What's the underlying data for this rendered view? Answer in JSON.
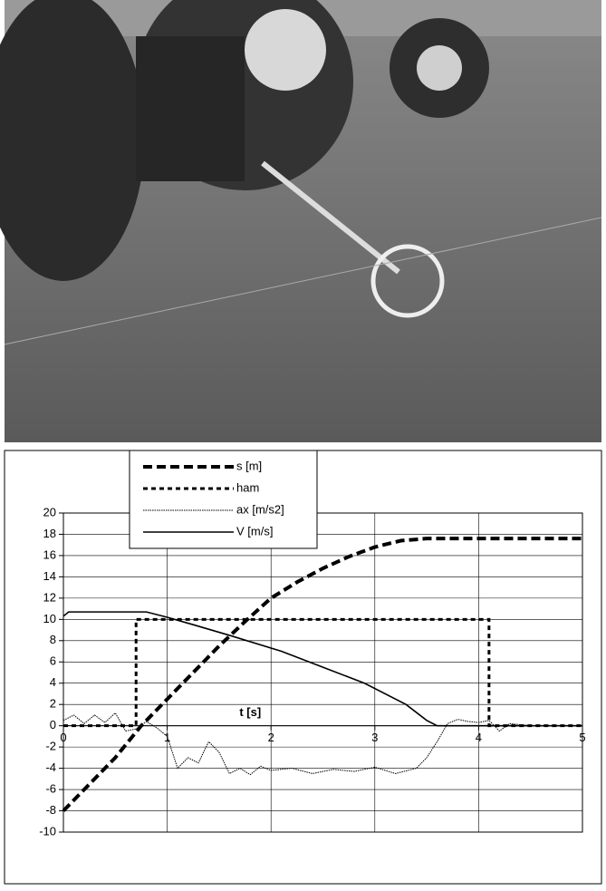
{
  "chart_data": {
    "type": "line",
    "x_label": "t [s]",
    "xlim": [
      0,
      5
    ],
    "xticks": [
      0,
      1,
      2,
      3,
      4,
      5
    ],
    "ylim": [
      -10,
      20
    ],
    "yticks": [
      -10,
      -8,
      -6,
      -4,
      -2,
      0,
      2,
      4,
      6,
      8,
      10,
      12,
      14,
      16,
      18,
      20
    ],
    "grid": true,
    "legend": "top-left",
    "series": [
      {
        "name": "s [m]",
        "color": "#000000",
        "line_style": "thick-dashed",
        "x": [
          0,
          0.25,
          0.5,
          0.75,
          1,
          1.25,
          1.5,
          1.75,
          2,
          2.25,
          2.5,
          2.75,
          3,
          3.25,
          3.5,
          4,
          5
        ],
        "values": [
          -8,
          -5.5,
          -3,
          0,
          2.5,
          5,
          7.5,
          9.8,
          12,
          13.5,
          14.8,
          15.9,
          16.8,
          17.4,
          17.6,
          17.6,
          17.6
        ]
      },
      {
        "name": "ham",
        "color": "#000000",
        "line_style": "dashed",
        "x": [
          0,
          0.7,
          0.7,
          4.1,
          4.1,
          5
        ],
        "values": [
          0,
          0,
          10,
          10,
          0,
          0
        ]
      },
      {
        "name": "ax [m/s2]",
        "color": "#000000",
        "line_style": "thin-dashed",
        "x": [
          0,
          0.1,
          0.2,
          0.3,
          0.4,
          0.5,
          0.6,
          0.7,
          0.8,
          0.9,
          1,
          1.1,
          1.2,
          1.3,
          1.4,
          1.5,
          1.6,
          1.7,
          1.8,
          1.9,
          2,
          2.2,
          2.4,
          2.6,
          2.8,
          3,
          3.2,
          3.4,
          3.5,
          3.6,
          3.7,
          3.8,
          3.9,
          4,
          4.1,
          4.2,
          4.3,
          4.5,
          5
        ],
        "values": [
          0.5,
          1,
          0.2,
          1,
          0.3,
          1.2,
          -0.5,
          -0.3,
          0.4,
          -0.2,
          -1,
          -4,
          -3,
          -3.5,
          -1.5,
          -2.5,
          -4.5,
          -4,
          -4.6,
          -3.8,
          -4.2,
          -4,
          -4.5,
          -4.1,
          -4.3,
          -3.9,
          -4.5,
          -4,
          -3,
          -1.5,
          0.2,
          0.6,
          0.4,
          0.3,
          0.5,
          -0.5,
          0.2,
          0,
          0
        ]
      },
      {
        "name": "V [m/s]",
        "color": "#000000",
        "line_style": "solid",
        "x": [
          0,
          0.05,
          0.8,
          1,
          1.25,
          1.6,
          2.1,
          2.5,
          2.9,
          3.3,
          3.5,
          3.6,
          5
        ],
        "values": [
          10.3,
          10.7,
          10.7,
          10.2,
          9.5,
          8.5,
          7,
          5.5,
          4,
          2,
          0.5,
          0,
          0
        ]
      }
    ]
  }
}
